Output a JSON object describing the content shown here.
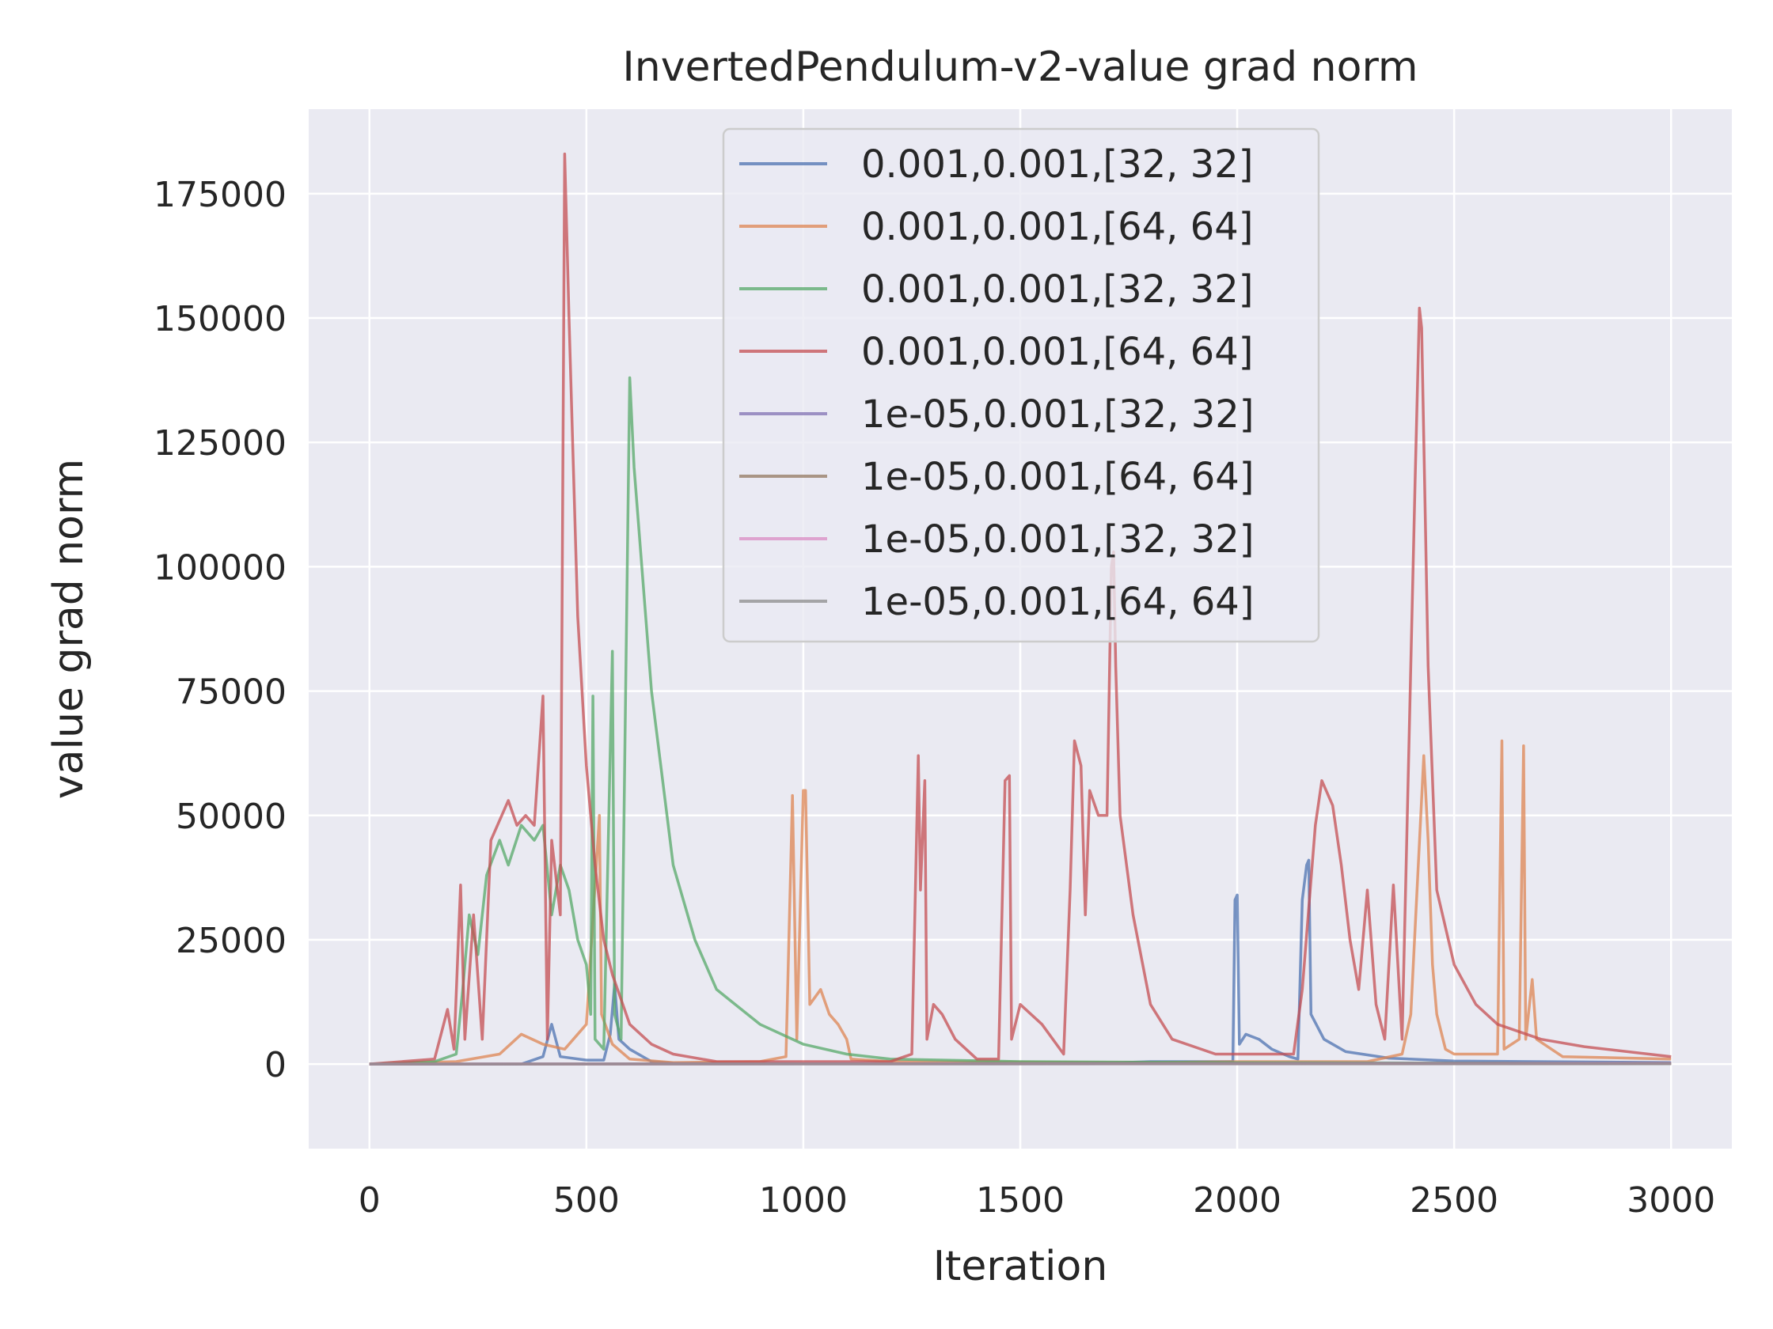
{
  "chart_data": {
    "type": "line",
    "title": "InvertedPendulum-v2-value grad norm",
    "xlabel": "Iteration",
    "ylabel": "value grad norm",
    "xlim": [
      -140,
      3140
    ],
    "ylim": [
      -17000,
      192000
    ],
    "xticks": [
      0,
      500,
      1000,
      1500,
      2000,
      2500,
      3000
    ],
    "xtick_labels": [
      "0",
      "500",
      "1000",
      "1500",
      "2000",
      "2500",
      "3000"
    ],
    "yticks": [
      0,
      25000,
      50000,
      75000,
      100000,
      125000,
      150000,
      175000
    ],
    "ytick_labels": [
      "0",
      "25000",
      "50000",
      "75000",
      "100000",
      "125000",
      "150000",
      "175000"
    ],
    "grid": true,
    "legend_position": "top-center",
    "background": "#eaeaf2",
    "series": [
      {
        "name": "0.001,0.001,[32, 32]",
        "color": "#4c72b0",
        "points": [
          [
            0,
            0
          ],
          [
            350,
            0
          ],
          [
            400,
            1500
          ],
          [
            420,
            8000
          ],
          [
            440,
            1500
          ],
          [
            500,
            800
          ],
          [
            540,
            800
          ],
          [
            555,
            6000
          ],
          [
            565,
            16000
          ],
          [
            575,
            5000
          ],
          [
            600,
            3000
          ],
          [
            650,
            500
          ],
          [
            700,
            200
          ],
          [
            1000,
            100
          ],
          [
            1500,
            100
          ],
          [
            1700,
            200
          ],
          [
            1800,
            500
          ],
          [
            1990,
            500
          ],
          [
            1995,
            33000
          ],
          [
            2000,
            34000
          ],
          [
            2005,
            4000
          ],
          [
            2020,
            6000
          ],
          [
            2050,
            5000
          ],
          [
            2080,
            3000
          ],
          [
            2120,
            1500
          ],
          [
            2140,
            1000
          ],
          [
            2150,
            33000
          ],
          [
            2160,
            40000
          ],
          [
            2165,
            41000
          ],
          [
            2170,
            10000
          ],
          [
            2200,
            5000
          ],
          [
            2250,
            2500
          ],
          [
            2350,
            1200
          ],
          [
            2500,
            600
          ],
          [
            3000,
            300
          ]
        ]
      },
      {
        "name": "0.001,0.001,[64, 64]",
        "color": "#dd8452",
        "points": [
          [
            0,
            0
          ],
          [
            200,
            500
          ],
          [
            300,
            2000
          ],
          [
            350,
            6000
          ],
          [
            400,
            4000
          ],
          [
            450,
            3000
          ],
          [
            500,
            8000
          ],
          [
            530,
            50000
          ],
          [
            535,
            10000
          ],
          [
            560,
            4000
          ],
          [
            600,
            1000
          ],
          [
            700,
            300
          ],
          [
            900,
            500
          ],
          [
            960,
            1500
          ],
          [
            975,
            54000
          ],
          [
            985,
            5000
          ],
          [
            1000,
            55000
          ],
          [
            1005,
            55000
          ],
          [
            1015,
            12000
          ],
          [
            1040,
            15000
          ],
          [
            1060,
            10000
          ],
          [
            1080,
            8000
          ],
          [
            1100,
            5000
          ],
          [
            1110,
            1000
          ],
          [
            1200,
            500
          ],
          [
            1800,
            300
          ],
          [
            2000,
            500
          ],
          [
            2300,
            500
          ],
          [
            2380,
            2000
          ],
          [
            2400,
            10000
          ],
          [
            2430,
            62000
          ],
          [
            2440,
            45000
          ],
          [
            2450,
            20000
          ],
          [
            2460,
            10000
          ],
          [
            2480,
            3000
          ],
          [
            2500,
            2000
          ],
          [
            2600,
            2000
          ],
          [
            2610,
            65000
          ],
          [
            2615,
            3000
          ],
          [
            2650,
            5000
          ],
          [
            2660,
            64000
          ],
          [
            2665,
            5000
          ],
          [
            2680,
            17000
          ],
          [
            2690,
            5000
          ],
          [
            2750,
            1500
          ],
          [
            3000,
            1000
          ]
        ]
      },
      {
        "name": "0.001,0.001,[32, 32]",
        "color": "#55a868",
        "points": [
          [
            0,
            0
          ],
          [
            150,
            500
          ],
          [
            200,
            2000
          ],
          [
            215,
            15000
          ],
          [
            230,
            30000
          ],
          [
            250,
            22000
          ],
          [
            270,
            38000
          ],
          [
            300,
            45000
          ],
          [
            320,
            40000
          ],
          [
            350,
            48000
          ],
          [
            380,
            45000
          ],
          [
            400,
            48000
          ],
          [
            420,
            30000
          ],
          [
            440,
            40000
          ],
          [
            460,
            35000
          ],
          [
            480,
            25000
          ],
          [
            500,
            20000
          ],
          [
            510,
            10000
          ],
          [
            515,
            74000
          ],
          [
            520,
            5000
          ],
          [
            540,
            3000
          ],
          [
            560,
            83000
          ],
          [
            565,
            10000
          ],
          [
            580,
            5000
          ],
          [
            600,
            138000
          ],
          [
            610,
            120000
          ],
          [
            650,
            75000
          ],
          [
            700,
            40000
          ],
          [
            750,
            25000
          ],
          [
            800,
            15000
          ],
          [
            900,
            8000
          ],
          [
            1000,
            4000
          ],
          [
            1100,
            2000
          ],
          [
            1200,
            1000
          ],
          [
            1500,
            500
          ],
          [
            2000,
            300
          ],
          [
            3000,
            100
          ]
        ]
      },
      {
        "name": "0.001,0.001,[64, 64]",
        "color": "#c44e52",
        "points": [
          [
            0,
            0
          ],
          [
            150,
            1000
          ],
          [
            180,
            11000
          ],
          [
            195,
            3000
          ],
          [
            210,
            36000
          ],
          [
            220,
            5000
          ],
          [
            240,
            30000
          ],
          [
            260,
            5000
          ],
          [
            280,
            45000
          ],
          [
            300,
            49000
          ],
          [
            320,
            53000
          ],
          [
            340,
            48000
          ],
          [
            360,
            50000
          ],
          [
            380,
            48000
          ],
          [
            400,
            74000
          ],
          [
            410,
            5000
          ],
          [
            420,
            45000
          ],
          [
            440,
            30000
          ],
          [
            450,
            183000
          ],
          [
            460,
            150000
          ],
          [
            480,
            90000
          ],
          [
            500,
            60000
          ],
          [
            520,
            40000
          ],
          [
            540,
            25000
          ],
          [
            560,
            18000
          ],
          [
            600,
            8000
          ],
          [
            650,
            4000
          ],
          [
            700,
            2000
          ],
          [
            800,
            500
          ],
          [
            1200,
            500
          ],
          [
            1250,
            2000
          ],
          [
            1265,
            62000
          ],
          [
            1270,
            35000
          ],
          [
            1280,
            57000
          ],
          [
            1285,
            5000
          ],
          [
            1300,
            12000
          ],
          [
            1320,
            10000
          ],
          [
            1350,
            5000
          ],
          [
            1400,
            1000
          ],
          [
            1450,
            1000
          ],
          [
            1465,
            57000
          ],
          [
            1475,
            58000
          ],
          [
            1480,
            5000
          ],
          [
            1500,
            12000
          ],
          [
            1550,
            8000
          ],
          [
            1600,
            2000
          ],
          [
            1615,
            35000
          ],
          [
            1625,
            65000
          ],
          [
            1640,
            60000
          ],
          [
            1650,
            30000
          ],
          [
            1660,
            55000
          ],
          [
            1680,
            50000
          ],
          [
            1700,
            50000
          ],
          [
            1710,
            100000
          ],
          [
            1715,
            103000
          ],
          [
            1720,
            80000
          ],
          [
            1730,
            50000
          ],
          [
            1760,
            30000
          ],
          [
            1800,
            12000
          ],
          [
            1850,
            5000
          ],
          [
            1950,
            2000
          ],
          [
            2050,
            2000
          ],
          [
            2130,
            2000
          ],
          [
            2150,
            15000
          ],
          [
            2180,
            48000
          ],
          [
            2195,
            57000
          ],
          [
            2220,
            52000
          ],
          [
            2240,
            40000
          ],
          [
            2260,
            25000
          ],
          [
            2280,
            15000
          ],
          [
            2300,
            35000
          ],
          [
            2320,
            12000
          ],
          [
            2340,
            5000
          ],
          [
            2360,
            36000
          ],
          [
            2380,
            5000
          ],
          [
            2410,
            117000
          ],
          [
            2420,
            152000
          ],
          [
            2425,
            148000
          ],
          [
            2440,
            80000
          ],
          [
            2460,
            35000
          ],
          [
            2500,
            20000
          ],
          [
            2550,
            12000
          ],
          [
            2600,
            8000
          ],
          [
            2700,
            5000
          ],
          [
            2800,
            3500
          ],
          [
            3000,
            1500
          ]
        ]
      },
      {
        "name": "1e-05,0.001,[32, 32]",
        "color": "#8172b3",
        "points": [
          [
            0,
            0
          ],
          [
            3000,
            200
          ]
        ]
      },
      {
        "name": "1e-05,0.001,[64, 64]",
        "color": "#937860",
        "points": [
          [
            0,
            0
          ],
          [
            3000,
            150
          ]
        ]
      },
      {
        "name": "1e-05,0.001,[32, 32]",
        "color": "#da8bc3",
        "points": [
          [
            0,
            0
          ],
          [
            3000,
            100
          ]
        ]
      },
      {
        "name": "1e-05,0.001,[64, 64]",
        "color": "#8c8c8c",
        "points": [
          [
            0,
            0
          ],
          [
            3000,
            50
          ]
        ]
      }
    ]
  }
}
